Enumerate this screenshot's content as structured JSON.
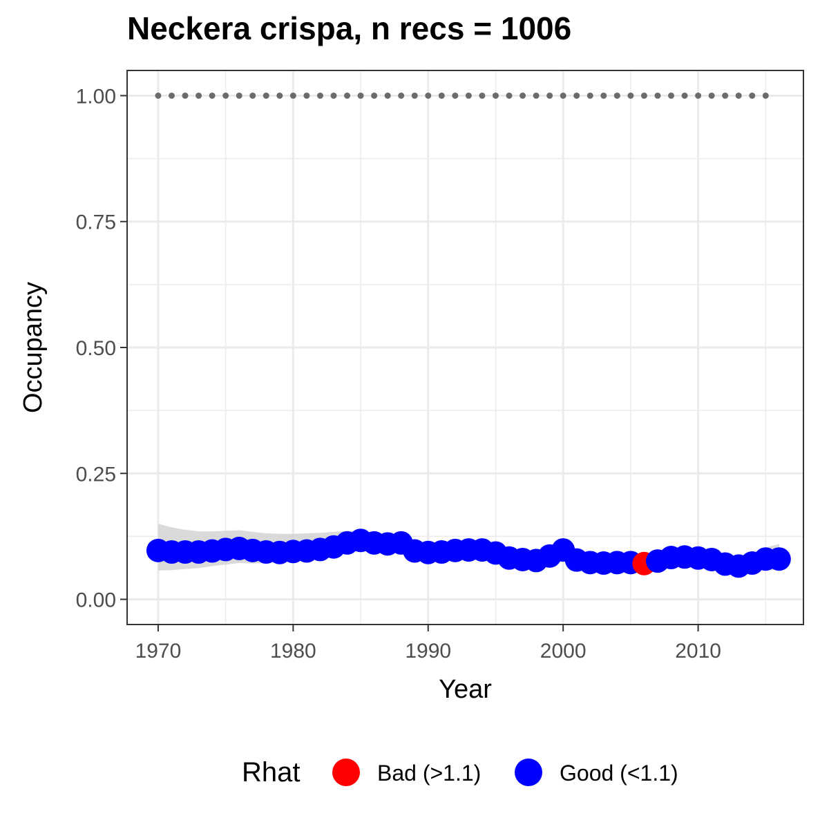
{
  "title": "Neckera crispa, n recs = 1006",
  "chart_data": {
    "type": "scatter",
    "title": "Neckera crispa, n recs = 1006",
    "xlabel": "Year",
    "ylabel": "Occupancy",
    "xlim": [
      1967.7,
      2017.8
    ],
    "ylim": [
      -0.05,
      1.05
    ],
    "x_ticks": [
      1970,
      1980,
      1990,
      2000,
      2010
    ],
    "y_ticks": [
      "0.00",
      "0.25",
      "0.50",
      "0.75",
      "1.00"
    ],
    "grid": true,
    "legend": {
      "title": "Rhat",
      "position": "bottom",
      "entries": [
        {
          "label": "Bad (>1.1)",
          "color": "#ff0000"
        },
        {
          "label": "Good (<1.1)",
          "color": "#0000ff"
        }
      ]
    },
    "series": [
      {
        "name": "Occupancy",
        "x": [
          1970,
          1971,
          1972,
          1973,
          1974,
          1975,
          1976,
          1977,
          1978,
          1979,
          1980,
          1981,
          1982,
          1983,
          1984,
          1985,
          1986,
          1987,
          1988,
          1989,
          1990,
          1991,
          1992,
          1993,
          1994,
          1995,
          1996,
          1997,
          1998,
          1999,
          2000,
          2001,
          2002,
          2003,
          2004,
          2005,
          2006,
          2007,
          2008,
          2009,
          2010,
          2011,
          2012,
          2013,
          2014,
          2015,
          2016
        ],
        "y": [
          0.097,
          0.094,
          0.094,
          0.094,
          0.096,
          0.099,
          0.101,
          0.097,
          0.094,
          0.093,
          0.095,
          0.096,
          0.099,
          0.104,
          0.112,
          0.117,
          0.112,
          0.11,
          0.112,
          0.096,
          0.093,
          0.094,
          0.097,
          0.098,
          0.098,
          0.092,
          0.082,
          0.079,
          0.077,
          0.086,
          0.098,
          0.078,
          0.073,
          0.072,
          0.073,
          0.073,
          0.071,
          0.076,
          0.083,
          0.084,
          0.082,
          0.079,
          0.07,
          0.066,
          0.072,
          0.08,
          0.08
        ],
        "rhat": [
          "good",
          "good",
          "good",
          "good",
          "good",
          "good",
          "good",
          "good",
          "good",
          "good",
          "good",
          "good",
          "good",
          "good",
          "good",
          "good",
          "good",
          "good",
          "good",
          "good",
          "good",
          "good",
          "good",
          "good",
          "good",
          "good",
          "good",
          "good",
          "good",
          "good",
          "good",
          "good",
          "good",
          "good",
          "good",
          "good",
          "bad",
          "good",
          "good",
          "good",
          "good",
          "good",
          "good",
          "good",
          "good",
          "good",
          "good"
        ],
        "ci_lower": [
          0.057,
          0.058,
          0.06,
          0.062,
          0.066,
          0.069,
          0.072,
          0.071,
          0.072,
          0.073,
          0.076,
          0.078,
          0.082,
          0.088,
          0.095,
          0.1,
          0.1,
          0.098,
          0.095,
          0.085,
          0.082,
          0.083,
          0.085,
          0.086,
          0.084,
          0.078,
          0.07,
          0.067,
          0.066,
          0.07,
          0.075,
          0.065,
          0.061,
          0.06,
          0.06,
          0.06,
          0.058,
          0.061,
          0.064,
          0.066,
          0.064,
          0.061,
          0.056,
          0.053,
          0.055,
          0.058,
          0.058
        ],
        "ci_upper": [
          0.15,
          0.143,
          0.138,
          0.135,
          0.135,
          0.136,
          0.137,
          0.134,
          0.131,
          0.13,
          0.13,
          0.131,
          0.132,
          0.134,
          0.136,
          0.136,
          0.13,
          0.125,
          0.12,
          0.114,
          0.11,
          0.11,
          0.112,
          0.113,
          0.112,
          0.106,
          0.098,
          0.094,
          0.094,
          0.102,
          0.113,
          0.097,
          0.089,
          0.086,
          0.087,
          0.088,
          0.087,
          0.092,
          0.098,
          0.1,
          0.1,
          0.098,
          0.09,
          0.086,
          0.092,
          0.103,
          0.11
        ]
      },
      {
        "name": "Upper bound",
        "x": [
          1970,
          1971,
          1972,
          1973,
          1974,
          1975,
          1976,
          1977,
          1978,
          1979,
          1980,
          1981,
          1982,
          1983,
          1984,
          1985,
          1986,
          1987,
          1988,
          1989,
          1990,
          1991,
          1992,
          1993,
          1994,
          1995,
          1996,
          1997,
          1998,
          1999,
          2000,
          2001,
          2002,
          2003,
          2004,
          2005,
          2006,
          2007,
          2008,
          2009,
          2010,
          2011,
          2012,
          2013,
          2014,
          2015
        ],
        "y": 1.0
      }
    ]
  },
  "colors": {
    "good": "#0000ff",
    "bad": "#ff0000",
    "dotted": "#6b6b6b",
    "ribbon": "#d3d3d3",
    "grid": "#ebebeb",
    "panel_border": "#333333"
  }
}
